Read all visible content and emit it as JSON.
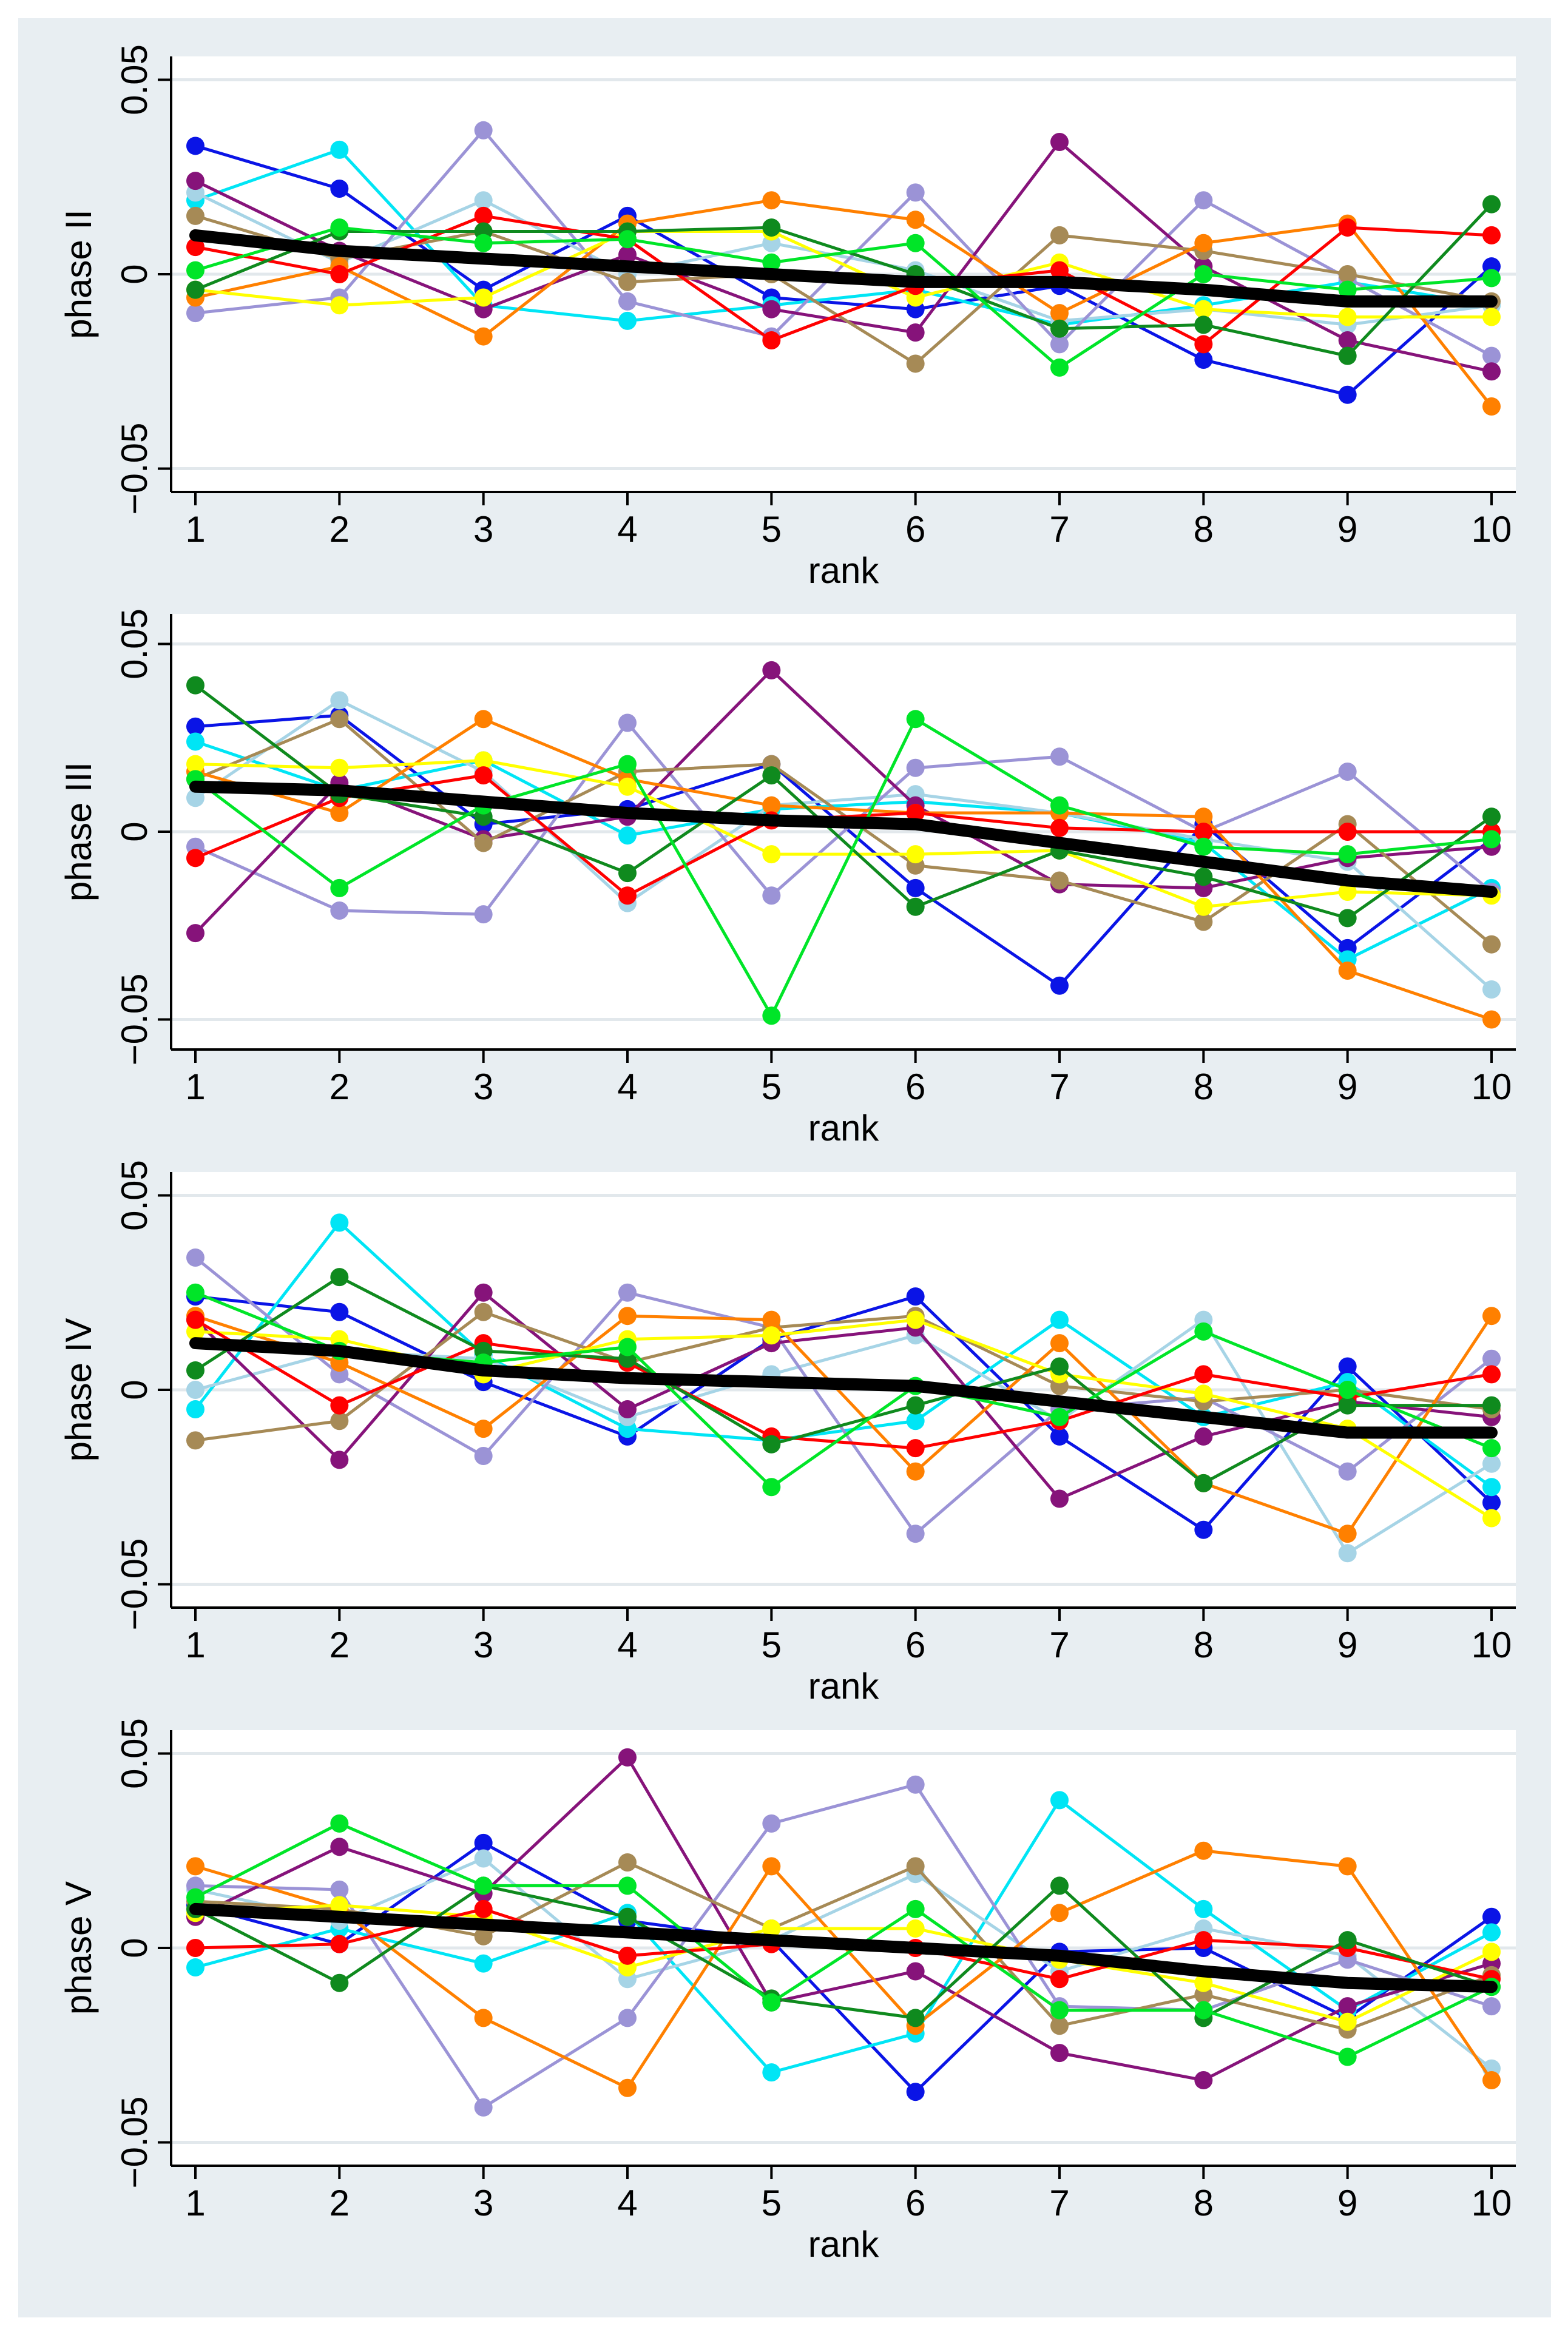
{
  "colors": {
    "background": "#e8eef2",
    "plot_background": "#ffffff",
    "grid": "#e2e8ec",
    "axis": "#000000",
    "trend": "#000000"
  },
  "chart_data": [
    {
      "type": "line",
      "title": "",
      "xlabel": "rank",
      "ylabel": "phase II",
      "x": [
        1,
        2,
        3,
        4,
        5,
        6,
        7,
        8,
        9,
        10
      ],
      "xticks": [
        "1",
        "2",
        "3",
        "4",
        "5",
        "6",
        "7",
        "8",
        "9",
        "10"
      ],
      "yticks": [
        -0.05,
        0,
        0.05
      ],
      "ytick_labels": [
        "−0.05",
        "0",
        "0.05"
      ],
      "ylim": [
        -0.056,
        0.056
      ],
      "grid": true,
      "series": [
        {
          "name": "blue",
          "color": "#0a14e6",
          "values": [
            0.033,
            0.022,
            -0.004,
            0.015,
            -0.006,
            -0.009,
            -0.003,
            -0.022,
            -0.031,
            0.002
          ]
        },
        {
          "name": "cyan",
          "color": "#00e5f5",
          "values": [
            0.019,
            0.032,
            -0.008,
            -0.012,
            -0.008,
            -0.004,
            -0.013,
            -0.008,
            -0.002,
            -0.008
          ]
        },
        {
          "name": "lightblue",
          "color": "#a6d4e6",
          "values": [
            0.021,
            0.003,
            0.019,
            0.0,
            0.008,
            0.001,
            -0.012,
            -0.009,
            -0.013,
            -0.008
          ]
        },
        {
          "name": "lavender",
          "color": "#9b93d6",
          "values": [
            -0.01,
            -0.006,
            0.037,
            -0.007,
            -0.016,
            0.021,
            -0.018,
            0.019,
            -0.001,
            -0.021
          ]
        },
        {
          "name": "purple",
          "color": "#86137a",
          "values": [
            0.024,
            0.006,
            -0.009,
            0.005,
            -0.009,
            -0.015,
            0.034,
            0.002,
            -0.017,
            -0.025
          ]
        },
        {
          "name": "tan",
          "color": "#a68a56",
          "values": [
            0.015,
            0.004,
            0.011,
            -0.002,
            0.0,
            -0.023,
            0.01,
            0.006,
            0.0,
            -0.007
          ]
        },
        {
          "name": "orange",
          "color": "#ff8000",
          "values": [
            -0.006,
            0.002,
            -0.016,
            0.013,
            0.019,
            0.014,
            -0.01,
            0.008,
            0.013,
            -0.034
          ]
        },
        {
          "name": "yellow",
          "color": "#ffff00",
          "values": [
            -0.004,
            -0.008,
            -0.006,
            0.011,
            0.011,
            -0.006,
            0.003,
            -0.009,
            -0.011,
            -0.011
          ]
        },
        {
          "name": "red",
          "color": "#ff0000",
          "values": [
            0.007,
            0.0,
            0.015,
            0.009,
            -0.017,
            -0.003,
            0.001,
            -0.018,
            0.012,
            0.01
          ]
        },
        {
          "name": "green",
          "color": "#0f8a1e",
          "values": [
            -0.004,
            0.011,
            0.011,
            0.011,
            0.012,
            0.0,
            -0.014,
            -0.013,
            -0.021,
            0.018
          ]
        },
        {
          "name": "lime",
          "color": "#00e528",
          "values": [
            0.001,
            0.012,
            0.008,
            0.009,
            0.003,
            0.008,
            -0.024,
            0.0,
            -0.004,
            -0.001
          ]
        }
      ],
      "trend": {
        "name": "mean",
        "values": [
          0.01,
          0.006,
          0.004,
          0.002,
          0.0,
          -0.002,
          -0.002,
          -0.004,
          -0.007,
          -0.007
        ]
      }
    },
    {
      "type": "line",
      "title": "",
      "xlabel": "rank",
      "ylabel": "phase III",
      "x": [
        1,
        2,
        3,
        4,
        5,
        6,
        7,
        8,
        9,
        10
      ],
      "xticks": [
        "1",
        "2",
        "3",
        "4",
        "5",
        "6",
        "7",
        "8",
        "9",
        "10"
      ],
      "yticks": [
        -0.05,
        0,
        0.05
      ],
      "ytick_labels": [
        "−0.05",
        "0",
        "0.05"
      ],
      "ylim": [
        -0.058,
        0.058
      ],
      "grid": true,
      "series": [
        {
          "name": "blue",
          "color": "#0a14e6",
          "values": [
            0.028,
            0.031,
            0.002,
            0.006,
            0.018,
            -0.015,
            -0.041,
            0.002,
            -0.031,
            -0.002
          ]
        },
        {
          "name": "cyan",
          "color": "#00e5f5",
          "values": [
            0.024,
            0.011,
            0.019,
            -0.001,
            0.006,
            0.008,
            0.005,
            -0.003,
            -0.034,
            -0.015
          ]
        },
        {
          "name": "lightblue",
          "color": "#a6d4e6",
          "values": [
            0.009,
            0.035,
            0.016,
            -0.019,
            0.007,
            0.01,
            0.005,
            -0.002,
            -0.008,
            -0.042
          ]
        },
        {
          "name": "lavender",
          "color": "#9b93d6",
          "values": [
            -0.004,
            -0.021,
            -0.022,
            0.029,
            -0.017,
            0.017,
            0.02,
            0.0,
            0.016,
            -0.016
          ]
        },
        {
          "name": "purple",
          "color": "#86137a",
          "values": [
            -0.027,
            0.013,
            -0.002,
            0.004,
            0.043,
            0.007,
            -0.014,
            -0.015,
            -0.007,
            -0.004
          ]
        },
        {
          "name": "tan",
          "color": "#a68a56",
          "values": [
            0.014,
            0.03,
            -0.003,
            0.016,
            0.018,
            -0.009,
            -0.013,
            -0.024,
            0.002,
            -0.03
          ]
        },
        {
          "name": "orange",
          "color": "#ff8000",
          "values": [
            0.016,
            0.005,
            0.03,
            0.014,
            0.007,
            0.005,
            0.005,
            0.004,
            -0.037,
            -0.05
          ]
        },
        {
          "name": "yellow",
          "color": "#ffff00",
          "values": [
            0.018,
            0.017,
            0.019,
            0.012,
            -0.006,
            -0.006,
            -0.005,
            -0.02,
            -0.016,
            -0.017
          ]
        },
        {
          "name": "red",
          "color": "#ff0000",
          "values": [
            -0.007,
            0.009,
            0.015,
            -0.017,
            0.003,
            0.005,
            0.001,
            0.0,
            0.0,
            0.0
          ]
        },
        {
          "name": "green",
          "color": "#0f8a1e",
          "values": [
            0.039,
            0.01,
            0.004,
            -0.011,
            0.015,
            -0.02,
            -0.005,
            -0.012,
            -0.023,
            0.004
          ]
        },
        {
          "name": "lime",
          "color": "#00e528",
          "values": [
            0.014,
            -0.015,
            0.007,
            0.018,
            -0.049,
            0.03,
            0.007,
            -0.004,
            -0.006,
            -0.002
          ]
        }
      ],
      "trend": {
        "name": "mean",
        "values": [
          0.012,
          0.011,
          0.008,
          0.005,
          0.003,
          0.002,
          -0.003,
          -0.008,
          -0.013,
          -0.016
        ]
      }
    },
    {
      "type": "line",
      "title": "",
      "xlabel": "rank",
      "ylabel": "phase IV",
      "x": [
        1,
        2,
        3,
        4,
        5,
        6,
        7,
        8,
        9,
        10
      ],
      "xticks": [
        "1",
        "2",
        "3",
        "4",
        "5",
        "6",
        "7",
        "8",
        "9",
        "10"
      ],
      "yticks": [
        -0.05,
        0,
        0.05
      ],
      "ytick_labels": [
        "−0.05",
        "0",
        "0.05"
      ],
      "ylim": [
        -0.056,
        0.056
      ],
      "grid": true,
      "series": [
        {
          "name": "blue",
          "color": "#0a14e6",
          "values": [
            0.024,
            0.02,
            0.002,
            -0.012,
            0.013,
            0.024,
            -0.012,
            -0.036,
            0.006,
            -0.029
          ]
        },
        {
          "name": "cyan",
          "color": "#00e5f5",
          "values": [
            -0.005,
            0.043,
            0.009,
            -0.01,
            -0.013,
            -0.008,
            0.018,
            -0.007,
            0.002,
            -0.025
          ]
        },
        {
          "name": "lightblue",
          "color": "#a6d4e6",
          "values": [
            0.0,
            0.01,
            0.008,
            -0.007,
            0.004,
            0.014,
            -0.008,
            0.018,
            -0.042,
            -0.019
          ]
        },
        {
          "name": "lavender",
          "color": "#9b93d6",
          "values": [
            0.034,
            0.004,
            -0.017,
            0.025,
            0.016,
            -0.037,
            -0.005,
            -0.002,
            -0.021,
            0.008
          ]
        },
        {
          "name": "purple",
          "color": "#86137a",
          "values": [
            0.018,
            -0.018,
            0.025,
            -0.005,
            0.012,
            0.016,
            -0.028,
            -0.012,
            -0.003,
            -0.007
          ]
        },
        {
          "name": "tan",
          "color": "#a68a56",
          "values": [
            -0.013,
            -0.008,
            0.02,
            0.007,
            0.016,
            0.019,
            0.001,
            -0.003,
            0.0,
            -0.005
          ]
        },
        {
          "name": "orange",
          "color": "#ff8000",
          "values": [
            0.019,
            0.007,
            -0.01,
            0.019,
            0.018,
            -0.021,
            0.012,
            -0.024,
            -0.037,
            0.019
          ]
        },
        {
          "name": "yellow",
          "color": "#ffff00",
          "values": [
            0.015,
            0.013,
            0.004,
            0.013,
            0.014,
            0.018,
            0.004,
            -0.001,
            -0.01,
            -0.033
          ]
        },
        {
          "name": "red",
          "color": "#ff0000",
          "values": [
            0.018,
            -0.004,
            0.012,
            0.007,
            -0.012,
            -0.015,
            -0.008,
            0.004,
            -0.002,
            0.004
          ]
        },
        {
          "name": "green",
          "color": "#0f8a1e",
          "values": [
            0.005,
            0.029,
            0.01,
            0.008,
            -0.014,
            -0.004,
            0.006,
            -0.024,
            -0.004,
            -0.004
          ]
        },
        {
          "name": "lime",
          "color": "#00e528",
          "values": [
            0.025,
            0.01,
            0.007,
            0.011,
            -0.025,
            0.001,
            -0.007,
            0.015,
            0.0,
            -0.015
          ]
        }
      ],
      "trend": {
        "name": "mean",
        "values": [
          0.012,
          0.01,
          0.005,
          0.003,
          0.002,
          0.001,
          -0.003,
          -0.007,
          -0.011,
          -0.011
        ]
      }
    },
    {
      "type": "line",
      "title": "",
      "xlabel": "rank",
      "ylabel": "phase V",
      "x": [
        1,
        2,
        3,
        4,
        5,
        6,
        7,
        8,
        9,
        10
      ],
      "xticks": [
        "1",
        "2",
        "3",
        "4",
        "5",
        "6",
        "7",
        "8",
        "9",
        "10"
      ],
      "yticks": [
        -0.05,
        0,
        0.05
      ],
      "ytick_labels": [
        "−0.05",
        "0",
        "0.05"
      ],
      "ylim": [
        -0.056,
        0.056
      ],
      "grid": true,
      "series": [
        {
          "name": "blue",
          "color": "#0a14e6",
          "values": [
            0.011,
            0.001,
            0.027,
            0.007,
            0.002,
            -0.037,
            -0.001,
            0.0,
            -0.018,
            0.008
          ]
        },
        {
          "name": "cyan",
          "color": "#00e5f5",
          "values": [
            -0.005,
            0.005,
            -0.004,
            0.009,
            -0.032,
            -0.022,
            0.038,
            0.01,
            -0.016,
            0.004
          ]
        },
        {
          "name": "lightblue",
          "color": "#a6d4e6",
          "values": [
            0.015,
            0.007,
            0.023,
            -0.008,
            0.002,
            0.019,
            -0.006,
            0.005,
            -0.002,
            -0.031
          ]
        },
        {
          "name": "lavender",
          "color": "#9b93d6",
          "values": [
            0.016,
            0.015,
            -0.041,
            -0.018,
            0.032,
            0.042,
            -0.015,
            -0.016,
            -0.003,
            -0.015
          ]
        },
        {
          "name": "purple",
          "color": "#86137a",
          "values": [
            0.008,
            0.026,
            0.014,
            0.049,
            -0.014,
            -0.006,
            -0.027,
            -0.034,
            -0.015,
            -0.004
          ]
        },
        {
          "name": "tan",
          "color": "#a68a56",
          "values": [
            0.012,
            0.01,
            0.003,
            0.022,
            0.005,
            0.021,
            -0.02,
            -0.012,
            -0.021,
            -0.007
          ]
        },
        {
          "name": "orange",
          "color": "#ff8000",
          "values": [
            0.021,
            0.01,
            -0.018,
            -0.036,
            0.021,
            -0.02,
            0.009,
            0.025,
            0.021,
            -0.034
          ]
        },
        {
          "name": "yellow",
          "color": "#ffff00",
          "values": [
            0.009,
            0.011,
            0.008,
            -0.005,
            0.005,
            0.005,
            -0.003,
            -0.009,
            -0.019,
            -0.001
          ]
        },
        {
          "name": "red",
          "color": "#ff0000",
          "values": [
            0.0,
            0.001,
            0.01,
            -0.002,
            0.001,
            0.0,
            -0.008,
            0.002,
            0.0,
            -0.008
          ]
        },
        {
          "name": "green",
          "color": "#0f8a1e",
          "values": [
            0.01,
            -0.009,
            0.016,
            0.008,
            -0.013,
            -0.018,
            0.016,
            -0.018,
            0.002,
            -0.01
          ]
        },
        {
          "name": "lime",
          "color": "#00e528",
          "values": [
            0.013,
            0.032,
            0.016,
            0.016,
            -0.014,
            0.01,
            -0.016,
            -0.016,
            -0.028,
            -0.01
          ]
        }
      ],
      "trend": {
        "name": "mean",
        "values": [
          0.01,
          0.008,
          0.006,
          0.004,
          0.002,
          0.0,
          -0.002,
          -0.006,
          -0.009,
          -0.01
        ]
      }
    }
  ]
}
